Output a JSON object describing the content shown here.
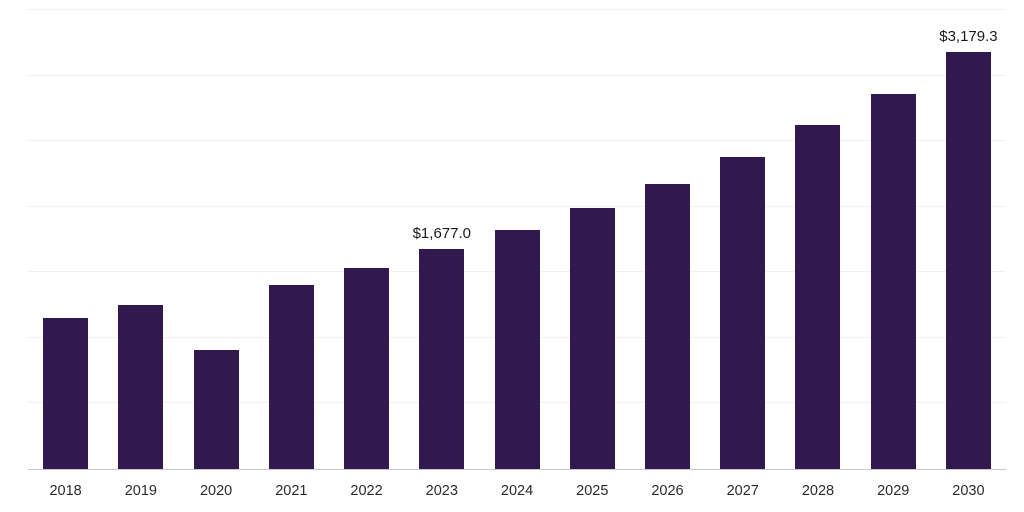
{
  "chart_data": {
    "type": "bar",
    "title": "",
    "xlabel": "",
    "ylabel": "",
    "categories": [
      "2018",
      "2019",
      "2020",
      "2021",
      "2022",
      "2023",
      "2024",
      "2025",
      "2026",
      "2027",
      "2028",
      "2029",
      "2030"
    ],
    "values": [
      1150,
      1250,
      910,
      1400,
      1530,
      1677.0,
      1820,
      1990,
      2170,
      2380,
      2620,
      2860,
      3179.3
    ],
    "data_labels": {
      "2023": "$1,677.0",
      "2030": "$3,179.3"
    },
    "ylim": [
      0,
      3500
    ],
    "gridline_step": 500,
    "grid": true,
    "legend_position": "none",
    "bar_color": "#31184f",
    "gridline_color": "#f1f1f3",
    "axis_line_color": "#c9c9c9",
    "tick_label_color": "#2b2b2b",
    "data_label_color": "#1a1a1a"
  }
}
